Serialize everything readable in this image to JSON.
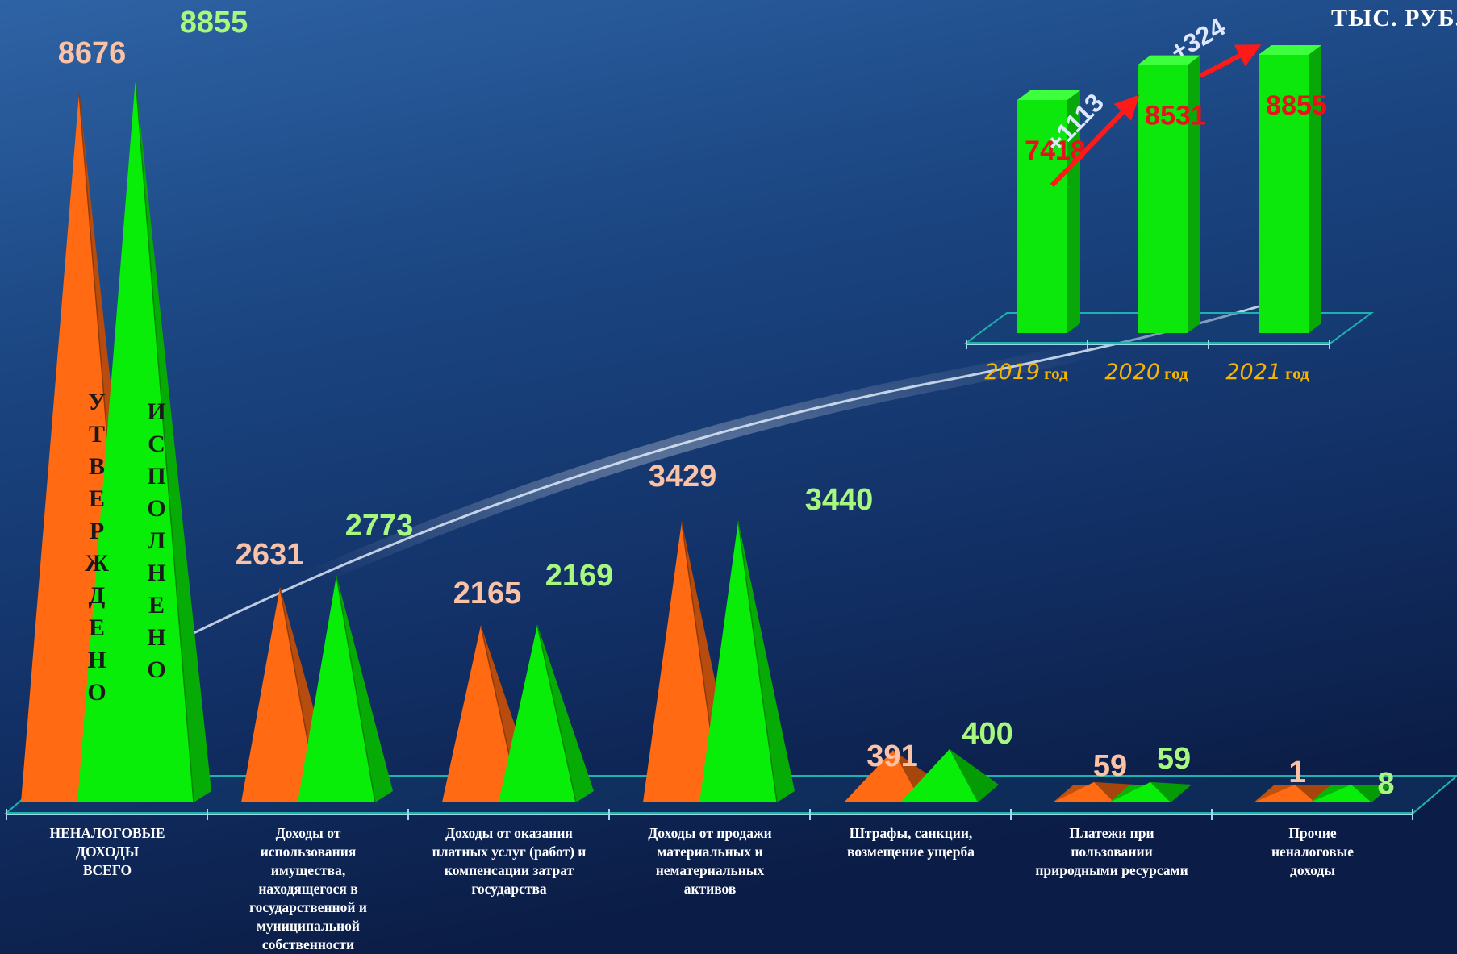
{
  "unit_label": "ТЫС. РУБ.",
  "colors": {
    "approved": "#ff6a13",
    "executed": "#08ee08",
    "approved_label": "#fbc2a6",
    "executed_label": "#a8f77f",
    "inset_value": "#e8121b",
    "year_label": "#f4b400"
  },
  "chart_data": [
    {
      "type": "bar",
      "categories": [
        "НЕНАЛОГОВЫЕ ДОХОДЫ ВСЕГО",
        "Доходы от использования имущества, находящегося в государственной и муниципальной собственности",
        "Доходы от оказания платных услуг (работ) и компенсации затрат государства",
        "Доходы от продажи материальных и нематериальных активов",
        "Штрафы, санкции, возмещение ущерба",
        "Платежи при пользовании природными ресурсами",
        "Прочие неналоговые доходы"
      ],
      "category_lines": [
        [
          "НЕНАЛОГОВЫЕ",
          "ДОХОДЫ",
          "ВСЕГО"
        ],
        [
          "Доходы от",
          "использования",
          "имущества,",
          "находящегося в",
          "государственной и",
          "муниципальной",
          "собственности"
        ],
        [
          "Доходы от оказания",
          "платных услуг (работ) и",
          "компенсации затрат",
          "государства"
        ],
        [
          "Доходы от продажи",
          "материальных и",
          "нематериальных",
          "активов"
        ],
        [
          "Штрафы, санкции,",
          "возмещение ущерба"
        ],
        [
          "Платежи при",
          "пользовании",
          "природными ресурсами"
        ],
        [
          "Прочие",
          "неналоговые",
          "доходы"
        ]
      ],
      "series": [
        {
          "name": "УТВЕРЖДЕНО",
          "values": [
            8676,
            2631,
            2165,
            3429,
            391,
            59,
            1
          ]
        },
        {
          "name": "ИСПОЛНЕНО",
          "values": [
            8855,
            2773,
            2169,
            3440,
            400,
            59,
            8
          ]
        }
      ],
      "ylim": [
        0,
        9000
      ],
      "grid": false,
      "legend": "none"
    },
    {
      "type": "bar",
      "categories": [
        "2019 год",
        "2020 год",
        "2021 год"
      ],
      "years": [
        "2019",
        "2020",
        "2021"
      ],
      "year_suffix": "год",
      "values": [
        7418,
        8531,
        8855
      ],
      "changes": [
        "+1113",
        "+324"
      ],
      "ylim": [
        0,
        9000
      ],
      "grid": false,
      "legend": "none"
    }
  ]
}
